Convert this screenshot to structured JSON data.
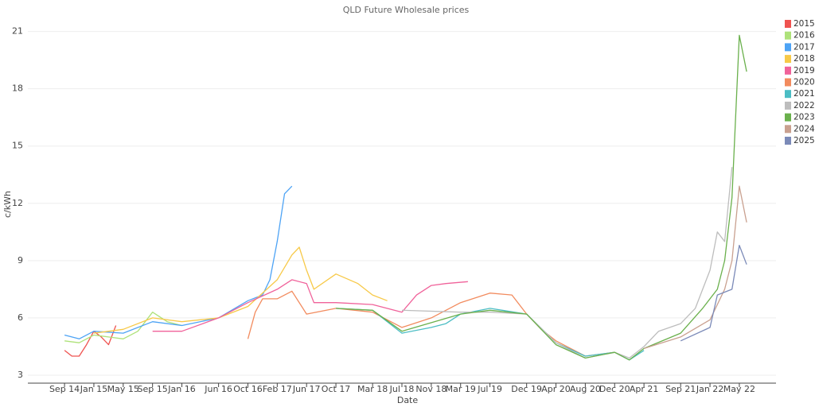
{
  "chart_data": {
    "type": "line",
    "title": "QLD Future Wholesale prices",
    "x_label": "Date",
    "y_label": "c/kWh",
    "xlim": [
      "2014-04",
      "2022-10"
    ],
    "ylim": [
      2.5,
      21.4
    ],
    "yticks": [
      3,
      6,
      9,
      12,
      15,
      18,
      21
    ],
    "xticks": [
      {
        "value": "2014-09",
        "label": "Sep 14"
      },
      {
        "value": "2015-01",
        "label": "Jan 15"
      },
      {
        "value": "2015-05",
        "label": "May 15"
      },
      {
        "value": "2015-09",
        "label": "Sep 15"
      },
      {
        "value": "2016-01",
        "label": "Jan 16"
      },
      {
        "value": "2016-06",
        "label": "Jun 16"
      },
      {
        "value": "2016-10",
        "label": "Oct 16"
      },
      {
        "value": "2017-02",
        "label": "Feb 17"
      },
      {
        "value": "2017-06",
        "label": "Jun 17"
      },
      {
        "value": "2017-10",
        "label": "Oct 17"
      },
      {
        "value": "2018-03",
        "label": "Mar 18"
      },
      {
        "value": "2018-07",
        "label": "Jul 18"
      },
      {
        "value": "2018-11",
        "label": "Nov 18"
      },
      {
        "value": "2019-03",
        "label": "Mar 19"
      },
      {
        "value": "2019-07",
        "label": "Jul 19"
      },
      {
        "value": "2019-12",
        "label": "Dec 19"
      },
      {
        "value": "2020-04",
        "label": "Apr 20"
      },
      {
        "value": "2020-08",
        "label": "Aug 20"
      },
      {
        "value": "2020-12",
        "label": "Dec 20"
      },
      {
        "value": "2021-04",
        "label": "Apr 21"
      },
      {
        "value": "2021-09",
        "label": "Sep 21"
      },
      {
        "value": "2022-01",
        "label": "Jan 22"
      },
      {
        "value": "2022-05",
        "label": "May 22"
      }
    ],
    "grid": true,
    "legend": "top-right",
    "series": [
      {
        "name": "2015",
        "color": "#ef5350",
        "x": [
          "2014-09",
          "2014-10",
          "2014-11",
          "2014-12",
          "2015-01",
          "2015-02",
          "2015-03",
          "2015-04"
        ],
        "values": [
          4.3,
          4.0,
          4.0,
          4.6,
          5.3,
          5.0,
          4.6,
          5.6
        ]
      },
      {
        "name": "2016",
        "color": "#aee27a",
        "x": [
          "2014-09",
          "2014-11",
          "2015-01",
          "2015-03",
          "2015-05",
          "2015-07",
          "2015-09",
          "2015-11",
          "2016-01"
        ],
        "values": [
          4.8,
          4.7,
          5.1,
          5.0,
          4.9,
          5.3,
          6.3,
          5.8,
          5.6
        ]
      },
      {
        "name": "2017",
        "color": "#4da3f5",
        "x": [
          "2014-09",
          "2014-11",
          "2015-01",
          "2015-05",
          "2015-09",
          "2016-01",
          "2016-06",
          "2016-10",
          "2016-12",
          "2017-01",
          "2017-02",
          "2017-03",
          "2017-04"
        ],
        "values": [
          5.1,
          4.9,
          5.3,
          5.2,
          5.8,
          5.6,
          6.0,
          6.9,
          7.2,
          8.0,
          10.0,
          12.5,
          12.9
        ]
      },
      {
        "name": "2018",
        "color": "#f7c948",
        "x": [
          "2015-01",
          "2015-05",
          "2015-09",
          "2016-01",
          "2016-06",
          "2016-10",
          "2017-02",
          "2017-04",
          "2017-05",
          "2017-06",
          "2017-07",
          "2017-10",
          "2018-01",
          "2018-03",
          "2018-05"
        ],
        "values": [
          5.2,
          5.4,
          6.0,
          5.8,
          6.0,
          6.6,
          8.0,
          9.3,
          9.7,
          8.5,
          7.5,
          8.3,
          7.8,
          7.2,
          6.9
        ]
      },
      {
        "name": "2019",
        "color": "#f0629a",
        "x": [
          "2015-09",
          "2016-01",
          "2016-06",
          "2016-10",
          "2017-02",
          "2017-04",
          "2017-06",
          "2017-07",
          "2017-10",
          "2018-03",
          "2018-07",
          "2018-09",
          "2018-11",
          "2019-01",
          "2019-04"
        ],
        "values": [
          5.3,
          5.3,
          6.0,
          6.8,
          7.5,
          8.0,
          7.8,
          6.8,
          6.8,
          6.7,
          6.3,
          7.2,
          7.7,
          7.8,
          7.9
        ]
      },
      {
        "name": "2020",
        "color": "#f28b5e",
        "x": [
          "2016-10",
          "2016-11",
          "2016-12",
          "2017-02",
          "2017-04",
          "2017-06",
          "2017-10",
          "2018-03",
          "2018-07",
          "2018-11",
          "2019-03",
          "2019-07",
          "2019-10",
          "2019-12",
          "2020-02",
          "2020-04",
          "2020-08",
          "2020-12",
          "2021-01"
        ],
        "values": [
          4.9,
          6.3,
          7.0,
          7.0,
          7.4,
          6.2,
          6.5,
          6.3,
          5.5,
          6.0,
          6.8,
          7.3,
          7.2,
          6.2,
          5.4,
          4.8,
          4.0,
          4.2,
          4.0
        ]
      },
      {
        "name": "2021",
        "color": "#4bbdc4",
        "x": [
          "2017-10",
          "2018-03",
          "2018-07",
          "2018-11",
          "2019-01",
          "2019-03",
          "2019-07",
          "2019-12",
          "2020-04",
          "2020-08",
          "2020-12",
          "2021-02",
          "2021-04"
        ],
        "values": [
          6.5,
          6.4,
          5.2,
          5.5,
          5.7,
          6.2,
          6.5,
          6.2,
          4.7,
          4.0,
          4.2,
          3.8,
          4.3
        ]
      },
      {
        "name": "2022",
        "color": "#bdbdbd",
        "x": [
          "2018-07",
          "2019-03",
          "2019-07",
          "2019-12",
          "2020-04",
          "2020-08",
          "2020-12",
          "2021-02",
          "2021-04",
          "2021-06",
          "2021-09",
          "2021-11",
          "2022-01",
          "2022-02",
          "2022-03",
          "2022-04"
        ],
        "values": [
          6.4,
          6.3,
          6.3,
          6.2,
          4.7,
          3.9,
          4.2,
          3.9,
          4.5,
          5.3,
          5.7,
          6.5,
          8.5,
          10.5,
          10.0,
          13.9
        ]
      },
      {
        "name": "2023",
        "color": "#6ab04c",
        "x": [
          "2017-10",
          "2018-03",
          "2018-07",
          "2019-03",
          "2019-07",
          "2019-12",
          "2020-04",
          "2020-08",
          "2020-12",
          "2021-02",
          "2021-04",
          "2021-09",
          "2021-12",
          "2022-02",
          "2022-03",
          "2022-04",
          "2022-05",
          "2022-06"
        ],
        "values": [
          6.5,
          6.4,
          5.3,
          6.2,
          6.4,
          6.2,
          4.6,
          3.9,
          4.2,
          3.8,
          4.4,
          5.2,
          6.5,
          7.5,
          9.0,
          12.3,
          20.8,
          18.9
        ]
      },
      {
        "name": "2024",
        "color": "#c9a08f",
        "x": [
          "2021-04",
          "2021-09",
          "2022-01",
          "2022-03",
          "2022-04",
          "2022-05",
          "2022-06"
        ],
        "values": [
          4.4,
          5.0,
          5.9,
          7.5,
          9.0,
          12.9,
          11.0
        ]
      },
      {
        "name": "2025",
        "color": "#7b8ab8",
        "x": [
          "2021-09",
          "2022-01",
          "2022-02",
          "2022-04",
          "2022-05",
          "2022-06"
        ],
        "values": [
          4.8,
          5.5,
          7.2,
          7.5,
          9.8,
          8.8
        ]
      }
    ]
  }
}
